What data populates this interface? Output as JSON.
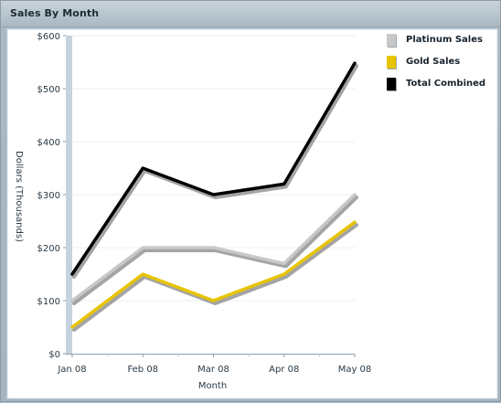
{
  "window": {
    "title": "Sales By Month"
  },
  "chart_data": {
    "type": "line",
    "title": "",
    "xlabel": "Month",
    "ylabel": "Dollars (Thousands)",
    "categories": [
      "Jan 08",
      "Feb 08",
      "Mar 08",
      "Apr 08",
      "May 08"
    ],
    "ylim": [
      0,
      600
    ],
    "yticks": [
      "$0",
      "$100",
      "$200",
      "$300",
      "$400",
      "$500",
      "$600"
    ],
    "grid": true,
    "legend_position": "right",
    "series": [
      {
        "name": "Platinum Sales",
        "values": [
          100,
          200,
          200,
          170,
          300
        ],
        "color": "#c8c8c8"
      },
      {
        "name": "Gold Sales",
        "values": [
          50,
          150,
          100,
          150,
          248
        ],
        "color": "#e8c400"
      },
      {
        "name": "Total Combined",
        "values": [
          150,
          350,
          300,
          320,
          548
        ],
        "color": "#000000"
      }
    ]
  },
  "legend": {
    "items": [
      {
        "label": "Platinum Sales",
        "color": "#c8c8c8"
      },
      {
        "label": "Gold Sales",
        "color": "#e8c400"
      },
      {
        "label": "Total Combined",
        "color": "#000000"
      }
    ]
  }
}
